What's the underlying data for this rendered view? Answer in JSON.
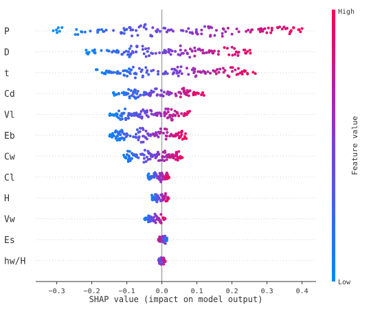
{
  "chart_data": {
    "type": "scatter",
    "subtype": "shap-beeswarm",
    "xlabel": "SHAP value (impact on model output)",
    "xlim": [
      -0.36,
      0.44
    ],
    "xticks": [
      -0.3,
      -0.2,
      -0.1,
      0.0,
      0.1,
      0.2,
      0.3,
      0.4
    ],
    "xtick_labels": [
      "−0.3",
      "−0.2",
      "−0.1",
      "0.0",
      "0.1",
      "0.2",
      "0.3",
      "0.4"
    ],
    "zero_line": true,
    "row_gridlines": "dotted",
    "colorbar": {
      "title": "Feature value",
      "high_label": "High",
      "low_label": "Low",
      "high_color": "#ff0052",
      "mid_color": "#7a3fd6",
      "low_color": "#008bfb"
    },
    "features": [
      {
        "name": "P",
        "min": -0.31,
        "max": 0.4,
        "spread": 0.7,
        "corr": 0.95,
        "count": 130
      },
      {
        "name": "D",
        "min": -0.22,
        "max": 0.26,
        "spread": 0.7,
        "corr": 0.93,
        "count": 120
      },
      {
        "name": "t",
        "min": -0.19,
        "max": 0.27,
        "spread": 0.7,
        "corr": 0.93,
        "count": 120
      },
      {
        "name": "Cd",
        "min": -0.14,
        "max": 0.12,
        "spread": 0.62,
        "corr": 0.9,
        "count": 110
      },
      {
        "name": "Vl",
        "min": -0.15,
        "max": 0.08,
        "spread": 0.75,
        "corr": 0.9,
        "count": 115
      },
      {
        "name": "Eb",
        "min": -0.15,
        "max": 0.07,
        "spread": 0.8,
        "corr": 0.9,
        "count": 120
      },
      {
        "name": "Cw",
        "min": -0.11,
        "max": 0.06,
        "spread": 0.75,
        "corr": 0.9,
        "count": 105
      },
      {
        "name": "Cl",
        "min": -0.04,
        "max": 0.02,
        "spread": 0.55,
        "corr": 0.9,
        "count": 70
      },
      {
        "name": "H",
        "min": -0.03,
        "max": 0.02,
        "spread": 0.55,
        "corr": 0.9,
        "count": 70
      },
      {
        "name": "Vw",
        "min": -0.05,
        "max": 0.01,
        "spread": 0.5,
        "corr": 0.9,
        "count": 60
      },
      {
        "name": "Es",
        "min": -0.01,
        "max": 0.015,
        "spread": 0.5,
        "corr": -0.6,
        "count": 60
      },
      {
        "name": "hw/H",
        "min": -0.01,
        "max": 0.01,
        "spread": 0.45,
        "corr": 0.4,
        "count": 45
      }
    ]
  }
}
